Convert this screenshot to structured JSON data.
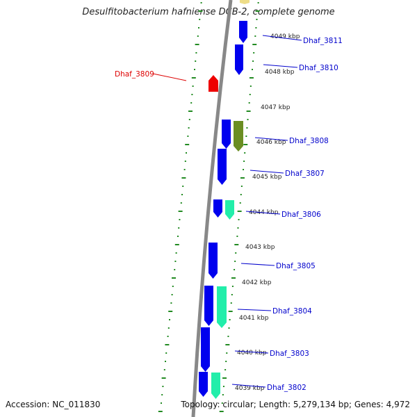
{
  "title": "Desulfitobacterium hafniense DCB-2, complete genome",
  "accession_text": "Accession: NC_011830",
  "topology_text": "Topology: circular; Length: 5,279,134 bp; Genes: 4,972",
  "colors": {
    "forward_gene": "#0000ee",
    "selected_gene": "#ee0000",
    "cds_teal": "#22eeaa",
    "cds_olive": "#6b8e23",
    "cds_tan": "#eedd88",
    "backbone": "#888888",
    "ticks": "#228b22",
    "label_blue": "#0000cc",
    "label_red": "#dd0000"
  },
  "kbp_labels": [
    "4049 kbp",
    "4048 kbp",
    "4047 kbp",
    "4046 kbp",
    "4045 kbp",
    "4044 kbp",
    "4043 kbp",
    "4042 kbp",
    "4041 kbp",
    "4040 kbp",
    "4039 kbp"
  ],
  "genes": [
    {
      "name": "Dhaf_3811",
      "side": "right"
    },
    {
      "name": "Dhaf_3810",
      "side": "right"
    },
    {
      "name": "Dhaf_3809",
      "side": "left",
      "selected": true
    },
    {
      "name": "Dhaf_3808",
      "side": "right"
    },
    {
      "name": "Dhaf_3807",
      "side": "right"
    },
    {
      "name": "Dhaf_3806",
      "side": "right"
    },
    {
      "name": "Dhaf_3805",
      "side": "right"
    },
    {
      "name": "Dhaf_3804",
      "side": "right"
    },
    {
      "name": "Dhaf_3803",
      "side": "right"
    },
    {
      "name": "Dhaf_3802",
      "side": "right"
    }
  ]
}
